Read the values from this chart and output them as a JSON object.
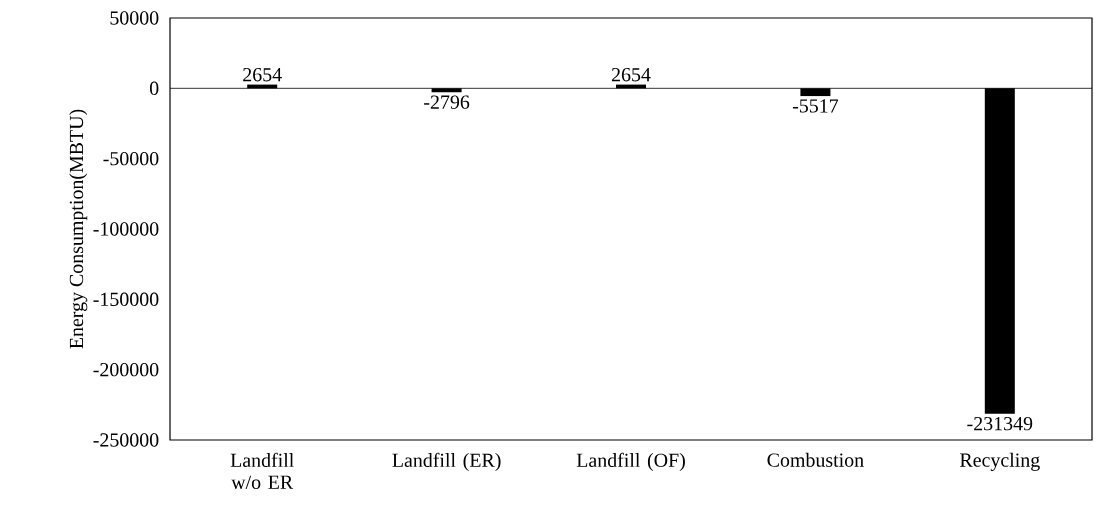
{
  "chart_data": {
    "type": "bar",
    "ylabel": "Energy Consumption(MBTU)",
    "categories": [
      "Landfill w/o ER",
      "Landfill (ER)",
      "Landfill (OF)",
      "Combustion",
      "Recycling"
    ],
    "values": [
      2654,
      -2796,
      2654,
      -5517,
      -231349
    ],
    "color": "#000000",
    "ylim": [
      -250000,
      50000
    ],
    "yticks": [
      -250000,
      -200000,
      -150000,
      -100000,
      -50000,
      0,
      50000
    ],
    "ref_lines": [
      {
        "axis": "y",
        "value": 0
      }
    ],
    "data_labels": true
  }
}
